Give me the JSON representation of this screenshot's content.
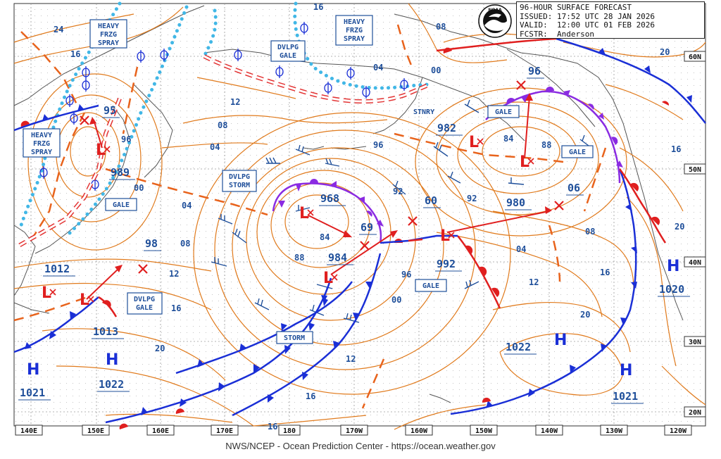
{
  "header": {
    "title": "96-HOUR SURFACE FORECAST",
    "issued": "ISSUED: 17:52 UTC 28 JAN 2026",
    "valid": "VALID:  12:00 UTC 01 FEB 2026",
    "forecaster": "FCSTR:  Anderson"
  },
  "logo_text": "NOAA",
  "credit": "NWS/NCEP - Ocean Prediction Center - https://ocean.weather.gov",
  "longitude_labels": [
    "140E",
    "150E",
    "160E",
    "170E",
    "180",
    "170W",
    "160W",
    "150W",
    "140W",
    "130W",
    "120W"
  ],
  "latitude_labels": [
    "60N",
    "50N",
    "40N",
    "30N",
    "20N"
  ],
  "pressure_centers": [
    {
      "type": "H",
      "value": "1021"
    },
    {
      "type": "H",
      "value": "1022"
    },
    {
      "type": "H",
      "value": "1022"
    },
    {
      "type": "H",
      "value": "1021"
    },
    {
      "type": "H",
      "value": "1020"
    },
    {
      "type": "L",
      "value": "989"
    },
    {
      "type": "L",
      "value": "1013"
    },
    {
      "type": "L",
      "value": "984"
    },
    {
      "type": "L",
      "value": "992"
    },
    {
      "type": "L",
      "value": "980"
    }
  ],
  "pressure_labels": [
    "1012",
    "968",
    "95",
    "982",
    "96",
    "60",
    "69",
    "06",
    "98"
  ],
  "isobar_labels": [
    "24",
    "16",
    "16",
    "08",
    "04",
    "00",
    "12",
    "08",
    "04",
    "00",
    "96",
    "96",
    "92",
    "92",
    "88",
    "88",
    "84",
    "84",
    "04",
    "08",
    "12",
    "16",
    "20",
    "04",
    "00",
    "96",
    "12",
    "16",
    "08",
    "20",
    "12",
    "16",
    "16",
    "20",
    "16",
    "20"
  ],
  "warnings": [
    {
      "lines": [
        "HEAVY",
        "FRZG",
        "SPRAY"
      ]
    },
    {
      "lines": [
        "HEAVY",
        "FRZG",
        "SPRAY"
      ]
    },
    {
      "lines": [
        "HEAVY",
        "FRZG",
        "SPRAY"
      ]
    },
    {
      "lines": [
        "DVLPG",
        "GALE"
      ]
    },
    {
      "lines": [
        "DVLPG",
        "STORM"
      ]
    },
    {
      "lines": [
        "DVLPG",
        "GALE"
      ]
    },
    {
      "lines": [
        "GALE"
      ]
    },
    {
      "lines": [
        "GALE"
      ]
    },
    {
      "lines": [
        "GALE"
      ]
    },
    {
      "lines": [
        "GALE"
      ]
    },
    {
      "lines": [
        "STORM"
      ]
    }
  ],
  "front_labels": [
    "STNRY"
  ],
  "colors": {
    "isobar": "#e07a1c",
    "trough": "#e8631c",
    "cold_front": "#1a2fd6",
    "warm_front": "#e01f1f",
    "occluded_front": "#8a2be2",
    "ice": "#41b7e6",
    "track": "#e01f1f",
    "label": "#1f4f9a",
    "land": "#555555"
  }
}
